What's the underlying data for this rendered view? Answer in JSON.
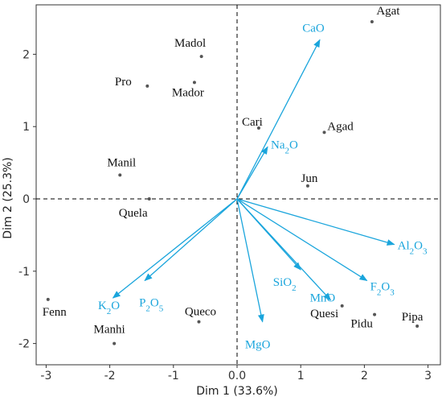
{
  "chart_data": {
    "type": "scatter",
    "title": "",
    "xlabel": "Dim 1 (33.6%)",
    "ylabel": "Dim 2 (25.3%)",
    "xlim": [
      -3.3,
      3.1
    ],
    "ylim": [
      -2.25,
      2.6
    ],
    "x_ticks": [
      -3,
      -2,
      -1,
      0,
      1,
      2,
      3
    ],
    "x_tick_labels": [
      "-3",
      "-2",
      "-1",
      "0.0",
      "1",
      "2",
      "3"
    ],
    "y_ticks": [
      -2,
      -1,
      0,
      1,
      2
    ],
    "y_tick_labels": [
      "-2",
      "-1",
      "0",
      "1",
      "2"
    ],
    "grid": false,
    "reference_lines": [
      "x=0",
      "y=0"
    ],
    "individuals": [
      {
        "name": "Agat",
        "x": 2.12,
        "y": 2.45
      },
      {
        "name": "Madol",
        "x": -0.56,
        "y": 1.97
      },
      {
        "name": "Pro",
        "x": -1.41,
        "y": 1.56
      },
      {
        "name": "Mador",
        "x": -0.67,
        "y": 1.61
      },
      {
        "name": "Cari",
        "x": 0.34,
        "y": 0.98
      },
      {
        "name": "Agad",
        "x": 1.37,
        "y": 0.92
      },
      {
        "name": "Manil",
        "x": -1.84,
        "y": 0.33
      },
      {
        "name": "Jun",
        "x": 1.11,
        "y": 0.18
      },
      {
        "name": "Quela",
        "x": -1.38,
        "y": 0.0
      },
      {
        "name": "Fenn",
        "x": -2.97,
        "y": -1.39
      },
      {
        "name": "Queco",
        "x": -0.6,
        "y": -1.7
      },
      {
        "name": "Manhi",
        "x": -1.93,
        "y": -2.0
      },
      {
        "name": "Quesi",
        "x": 1.65,
        "y": -1.48
      },
      {
        "name": "Pidu",
        "x": 2.16,
        "y": -1.6
      },
      {
        "name": "Pipa",
        "x": 2.83,
        "y": -1.76
      }
    ],
    "variables": [
      {
        "formula": "CaO",
        "parts": [
          [
            "CaO",
            ""
          ]
        ],
        "x": 1.3,
        "y": 2.2
      },
      {
        "formula": "Na2O",
        "parts": [
          [
            "Na",
            ""
          ],
          [
            "2",
            "sub"
          ],
          [
            "O",
            ""
          ]
        ],
        "x": 0.48,
        "y": 0.72
      },
      {
        "formula": "Al2O3",
        "parts": [
          [
            "Al",
            ""
          ],
          [
            "2",
            "sub"
          ],
          [
            "O",
            ""
          ],
          [
            "3",
            "sub"
          ]
        ],
        "x": 2.47,
        "y": -0.63
      },
      {
        "formula": "SiO2",
        "parts": [
          [
            "SiO",
            ""
          ],
          [
            "2",
            "sub"
          ]
        ],
        "x": 1.0,
        "y": -0.98
      },
      {
        "formula": "F2O3",
        "parts": [
          [
            "F",
            ""
          ],
          [
            "2",
            "sub"
          ],
          [
            "O",
            ""
          ],
          [
            "3",
            "sub"
          ]
        ],
        "x": 2.04,
        "y": -1.13
      },
      {
        "formula": "MnO",
        "parts": [
          [
            "MnO",
            ""
          ]
        ],
        "x": 1.47,
        "y": -1.4
      },
      {
        "formula": "MgO",
        "parts": [
          [
            "MgO",
            ""
          ]
        ],
        "x": 0.4,
        "y": -1.7
      },
      {
        "formula": "K2O",
        "parts": [
          [
            "K",
            ""
          ],
          [
            "2",
            "sub"
          ],
          [
            "O",
            ""
          ]
        ],
        "x": -1.95,
        "y": -1.37
      },
      {
        "formula": "P2O5",
        "parts": [
          [
            "P",
            ""
          ],
          [
            "2",
            "sub"
          ],
          [
            "O",
            ""
          ],
          [
            "5",
            "sub"
          ]
        ],
        "x": -1.45,
        "y": -1.13
      }
    ],
    "colors": {
      "variables": "#1aa5dc",
      "points": "#555555",
      "axes": "#333333"
    }
  }
}
